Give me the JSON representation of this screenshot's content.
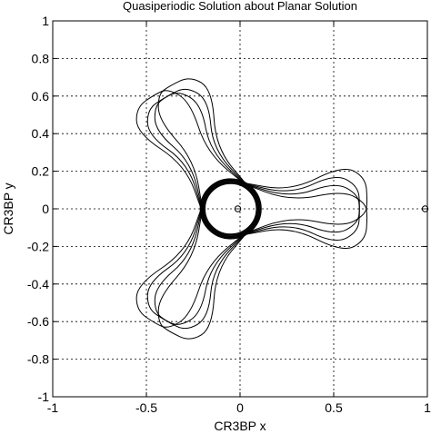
{
  "chart_data": {
    "type": "line",
    "title": "Quasiperiodic Solution about Planar Solution",
    "xlabel": "CR3BP x",
    "ylabel": "CR3BP y",
    "xlim": [
      -1,
      1
    ],
    "ylim": [
      -1,
      1
    ],
    "xticks": [
      -1,
      -0.5,
      0,
      0.5,
      1
    ],
    "yticks": [
      -1,
      -0.8,
      -0.6,
      -0.4,
      -0.2,
      0,
      0.2,
      0.4,
      0.6,
      0.8,
      1
    ],
    "xtick_labels": [
      "-1",
      "-0.5",
      "0",
      "0.5",
      "1"
    ],
    "ytick_labels": [
      "-1",
      "-0.8",
      "-0.6",
      "-0.4",
      "-0.2",
      "0",
      "0.2",
      "0.4",
      "0.6",
      "0.8",
      "1"
    ],
    "grid": true,
    "colors": {
      "trajectory": "#000000",
      "grid": "#000000",
      "background": "#ffffff"
    },
    "series": [
      {
        "kind": "trajectory",
        "center": [
          -0.05,
          0.0
        ],
        "inner_radius": 0.15,
        "lobe_directions_deg": [
          0,
          120,
          240
        ],
        "lobe_tip_distance": 0.66,
        "lobe_width": 0.22,
        "band_count": 4
      },
      {
        "kind": "bodies",
        "points": [
          {
            "x": -0.012,
            "y": 0.0,
            "label": ""
          },
          {
            "x": 0.988,
            "y": 0.0,
            "label": ""
          }
        ]
      }
    ]
  }
}
